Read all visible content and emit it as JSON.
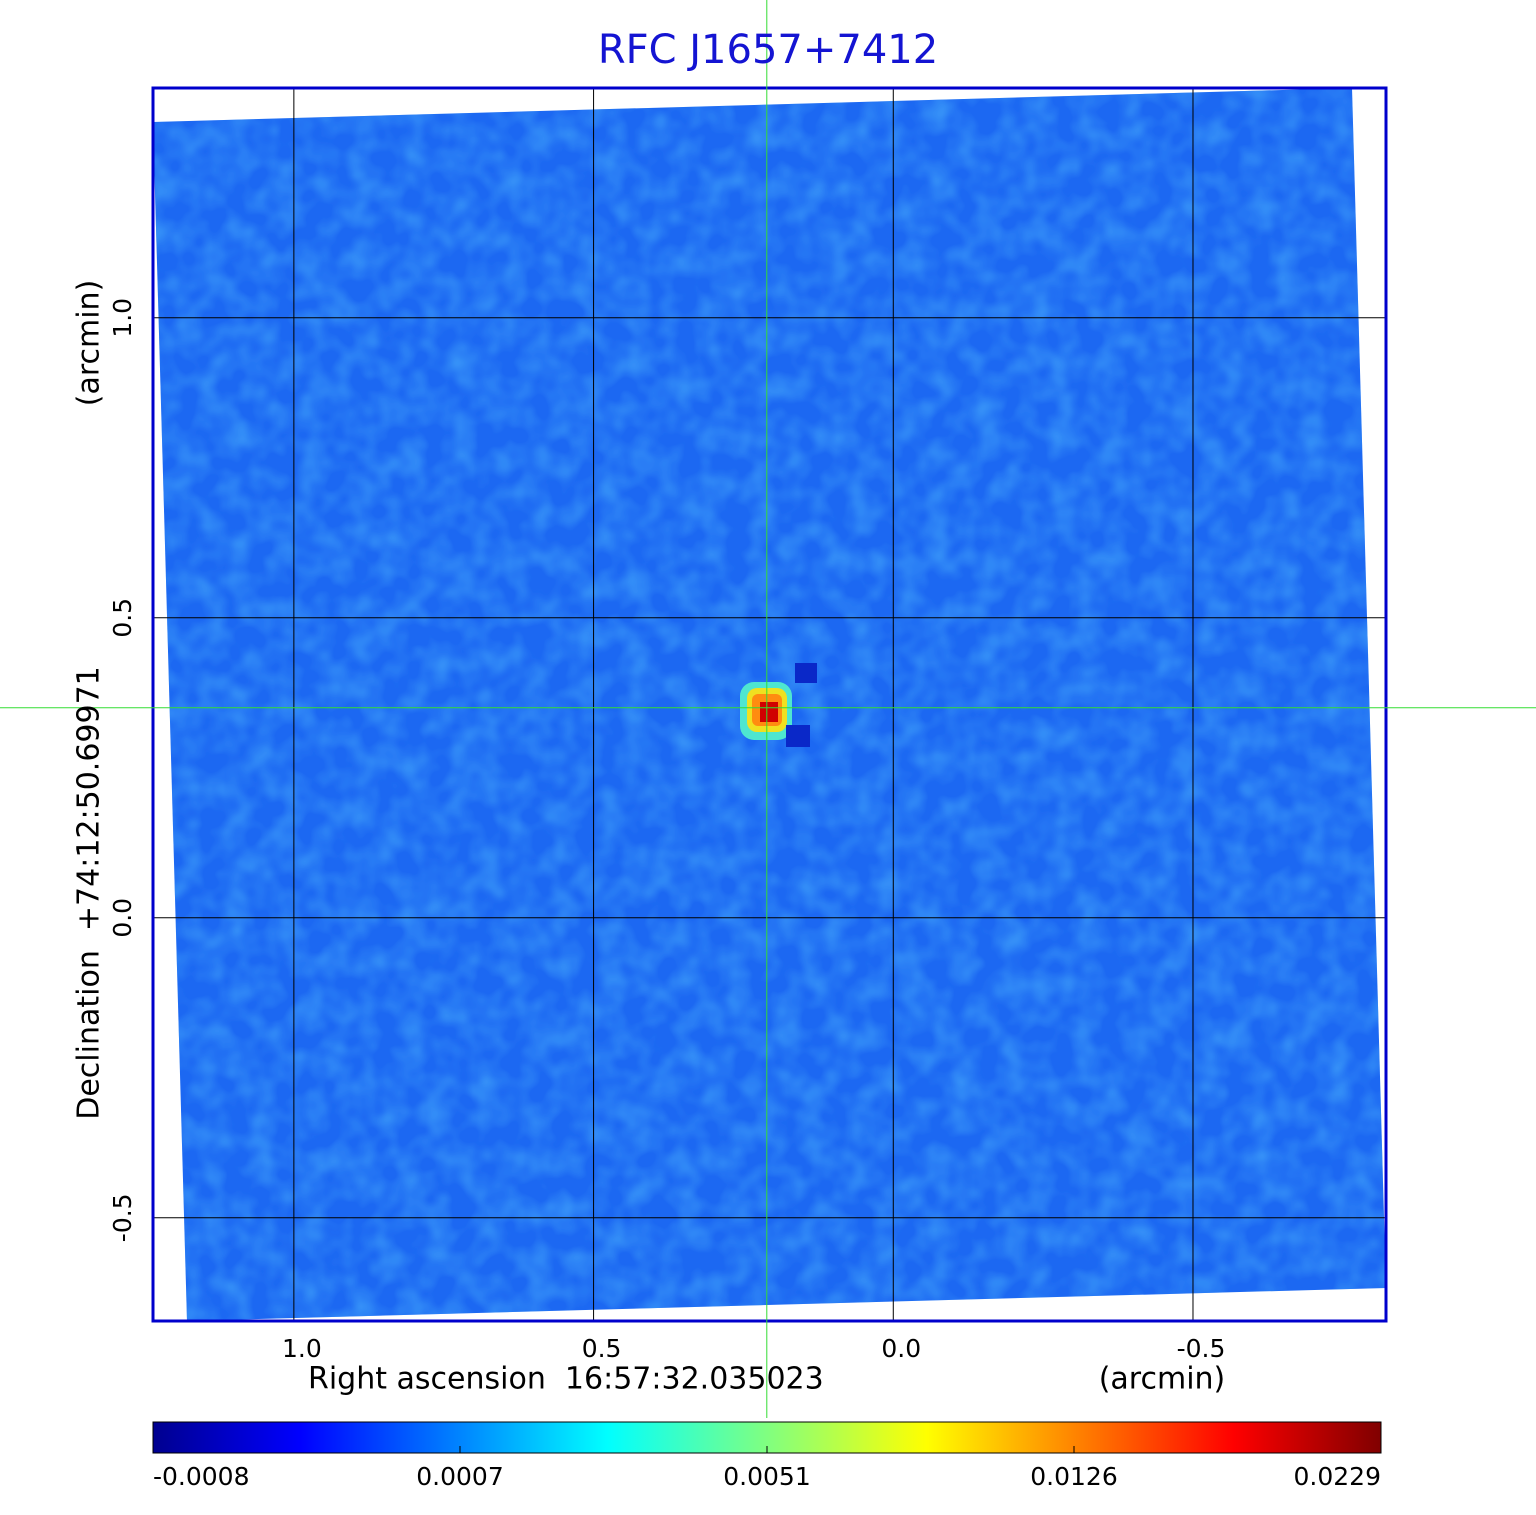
{
  "chart_data": {
    "type": "image",
    "title": "RFC J1657+7412",
    "xlabel": "Right ascension  16:57:32.035023",
    "xunit": "(arcmin)",
    "ylabel": "Declination  +74:12:50.69971",
    "yunit": "(arcmin)",
    "xlim": [
      1.235,
      -0.822
    ],
    "ylim": [
      -0.672,
      1.383
    ],
    "xticks": [
      {
        "value": 1,
        "label": "1.0"
      },
      0.5,
      {
        "value": 0,
        "label": "0.0"
      },
      -0.5
    ],
    "yticks": [
      {
        "value": 1,
        "label": "1.0"
      },
      0.5,
      {
        "value": 0,
        "label": "0.0"
      },
      -0.5
    ],
    "grid": true,
    "frame_color": "#0000cc",
    "title_color": "#1414d2",
    "crosshair": {
      "x": 0.211,
      "y": 0.35,
      "color": "#33dd33"
    },
    "colormap": "jet",
    "colorbar_ticks": [
      -0.0008,
      0.0007,
      0.0051,
      0.0126,
      0.0229
    ]
  }
}
